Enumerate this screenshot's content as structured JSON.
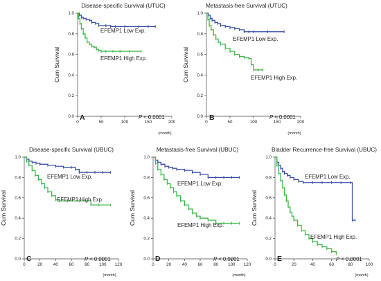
{
  "colors": {
    "low": "#3b4fa3",
    "high": "#3db84a",
    "axis": "#444444"
  },
  "chart_data": [
    {
      "type": "line",
      "letter": "A",
      "title": "Disease-specific Survival (UTUC)",
      "ylabel": "Cum Survival",
      "xunit": "(month)",
      "xticks": [
        "0",
        "50",
        "100",
        "150",
        "200"
      ],
      "yticks": [
        "0.0",
        "0.2",
        "0.4",
        "0.6",
        "0.8",
        "1.0"
      ],
      "xlim": [
        0,
        200
      ],
      "ylim": [
        0,
        1
      ],
      "pvalue": "< 0.0001",
      "series": [
        {
          "name": "EFEMP1 Low Exp.",
          "color": "low",
          "x": [
            0,
            4,
            8,
            12,
            18,
            25,
            30,
            38,
            45,
            60,
            70,
            80,
            100,
            130,
            150,
            165
          ],
          "y": [
            1.0,
            0.98,
            0.96,
            0.95,
            0.94,
            0.93,
            0.91,
            0.9,
            0.88,
            0.88,
            0.87,
            0.87,
            0.87,
            0.87,
            0.87,
            0.87
          ]
        },
        {
          "name": "EFEMP1 High Exp.",
          "color": "high",
          "x": [
            0,
            2,
            5,
            8,
            12,
            16,
            20,
            25,
            30,
            35,
            40,
            45,
            50,
            60,
            75,
            90,
            110,
            135
          ],
          "y": [
            1.0,
            0.95,
            0.9,
            0.85,
            0.8,
            0.76,
            0.72,
            0.7,
            0.68,
            0.67,
            0.65,
            0.64,
            0.63,
            0.63,
            0.63,
            0.63,
            0.63,
            0.63
          ]
        }
      ]
    },
    {
      "type": "line",
      "letter": "B",
      "title": "Metastasis-free Survival (UTUC)",
      "ylabel": "Cum Survival",
      "xunit": "(month)",
      "xticks": [
        "0",
        "50",
        "100",
        "150",
        "200"
      ],
      "yticks": [
        "0.0",
        "0.2",
        "0.4",
        "0.6",
        "0.8",
        "1.0"
      ],
      "xlim": [
        0,
        200
      ],
      "ylim": [
        0,
        1
      ],
      "pvalue": "< 0.0001",
      "series": [
        {
          "name": "EFEMP1 Low Exp.",
          "color": "low",
          "x": [
            0,
            4,
            8,
            12,
            18,
            24,
            30,
            40,
            50,
            60,
            70,
            80,
            90,
            100,
            130,
            165
          ],
          "y": [
            1.0,
            0.98,
            0.95,
            0.93,
            0.91,
            0.9,
            0.88,
            0.87,
            0.86,
            0.85,
            0.84,
            0.82,
            0.82,
            0.82,
            0.82,
            0.82
          ]
        },
        {
          "name": "EFEMP1 High Exp.",
          "color": "high",
          "x": [
            0,
            3,
            6,
            10,
            15,
            20,
            25,
            30,
            40,
            50,
            60,
            70,
            80,
            90,
            95,
            100,
            110,
            120
          ],
          "y": [
            1.0,
            0.94,
            0.88,
            0.84,
            0.79,
            0.75,
            0.72,
            0.7,
            0.66,
            0.63,
            0.6,
            0.58,
            0.57,
            0.56,
            0.5,
            0.45,
            0.45,
            0.45
          ]
        }
      ]
    },
    {
      "type": "line",
      "letter": "C",
      "title": "Disease-specific Survival (UBUC)",
      "ylabel": "Cum Survival",
      "xunit": "(month)",
      "xticks": [
        "0",
        "20",
        "40",
        "60",
        "80",
        "100",
        "120"
      ],
      "yticks": [
        "0.0",
        "0.2",
        "0.4",
        "0.6",
        "0.8",
        "1.0"
      ],
      "xlim": [
        0,
        120
      ],
      "ylim": [
        0,
        1
      ],
      "pvalue": "< 0.0001",
      "series": [
        {
          "name": "EFEMP1 Low Exp.",
          "color": "low",
          "x": [
            0,
            3,
            6,
            10,
            15,
            20,
            30,
            40,
            50,
            60,
            65,
            70,
            80,
            90,
            100,
            110
          ],
          "y": [
            1.0,
            0.98,
            0.96,
            0.95,
            0.94,
            0.93,
            0.92,
            0.91,
            0.9,
            0.9,
            0.88,
            0.85,
            0.85,
            0.85,
            0.85,
            0.85
          ]
        },
        {
          "name": "EFEMP1 High Exp.",
          "color": "high",
          "x": [
            0,
            3,
            6,
            10,
            14,
            18,
            22,
            26,
            30,
            35,
            40,
            45,
            55,
            70,
            85,
            95,
            110
          ],
          "y": [
            1.0,
            0.96,
            0.92,
            0.87,
            0.82,
            0.78,
            0.74,
            0.7,
            0.66,
            0.62,
            0.58,
            0.57,
            0.57,
            0.57,
            0.53,
            0.53,
            0.53
          ]
        }
      ]
    },
    {
      "type": "line",
      "letter": "D",
      "title": "Metastasis-free Survival (UBUC)",
      "ylabel": "Cum Survival",
      "xunit": "(month)",
      "xticks": [
        "0",
        "20",
        "40",
        "60",
        "80",
        "100",
        "120"
      ],
      "yticks": [
        "0.0",
        "0.2",
        "0.4",
        "0.6",
        "0.8",
        "1.0"
      ],
      "xlim": [
        0,
        120
      ],
      "ylim": [
        0,
        1
      ],
      "pvalue": "< 0.0001",
      "series": [
        {
          "name": "EFEMP1 Low Exp.",
          "color": "low",
          "x": [
            0,
            3,
            6,
            10,
            15,
            20,
            25,
            30,
            40,
            50,
            60,
            70,
            80,
            90,
            100,
            110
          ],
          "y": [
            1.0,
            0.97,
            0.95,
            0.93,
            0.91,
            0.9,
            0.89,
            0.88,
            0.87,
            0.85,
            0.83,
            0.8,
            0.8,
            0.8,
            0.8,
            0.8
          ]
        },
        {
          "name": "EFEMP1 High Exp.",
          "color": "high",
          "x": [
            0,
            3,
            6,
            10,
            14,
            18,
            22,
            26,
            30,
            35,
            40,
            45,
            50,
            55,
            60,
            70,
            80,
            90,
            100,
            110
          ],
          "y": [
            1.0,
            0.94,
            0.88,
            0.83,
            0.78,
            0.74,
            0.7,
            0.66,
            0.62,
            0.57,
            0.53,
            0.49,
            0.45,
            0.42,
            0.4,
            0.38,
            0.35,
            0.35,
            0.35,
            0.35
          ]
        }
      ]
    },
    {
      "type": "line",
      "letter": "E",
      "title": "Bladder Recurrence-free Survival (UBUC)",
      "ylabel": "Cum Survival",
      "xunit": "(month)",
      "xticks": [
        "0",
        "20",
        "40",
        "60",
        "80",
        "100"
      ],
      "yticks": [
        "0.0",
        "0.2",
        "0.4",
        "0.6",
        "0.8",
        "1.0"
      ],
      "xlim": [
        0,
        100
      ],
      "ylim": [
        0,
        1
      ],
      "pvalue": "< 0.0001",
      "series": [
        {
          "name": "EFEMP1 Low Exp.",
          "color": "low",
          "x": [
            0,
            2,
            4,
            6,
            8,
            10,
            13,
            16,
            20,
            25,
            30,
            40,
            50,
            60,
            70,
            80,
            82,
            85
          ],
          "y": [
            1.0,
            0.95,
            0.92,
            0.89,
            0.86,
            0.84,
            0.82,
            0.8,
            0.78,
            0.76,
            0.75,
            0.75,
            0.75,
            0.75,
            0.75,
            0.75,
            0.38,
            0.38
          ]
        },
        {
          "name": "EFEMP1 High Exp.",
          "color": "high",
          "x": [
            0,
            2,
            4,
            6,
            8,
            10,
            12,
            14,
            16,
            18,
            20,
            24,
            28,
            32,
            36,
            40,
            45,
            50,
            55,
            60,
            65
          ],
          "y": [
            1.0,
            0.92,
            0.84,
            0.77,
            0.7,
            0.63,
            0.57,
            0.51,
            0.46,
            0.42,
            0.38,
            0.33,
            0.28,
            0.24,
            0.2,
            0.17,
            0.14,
            0.12,
            0.1,
            0.07,
            0.05
          ]
        }
      ]
    }
  ]
}
